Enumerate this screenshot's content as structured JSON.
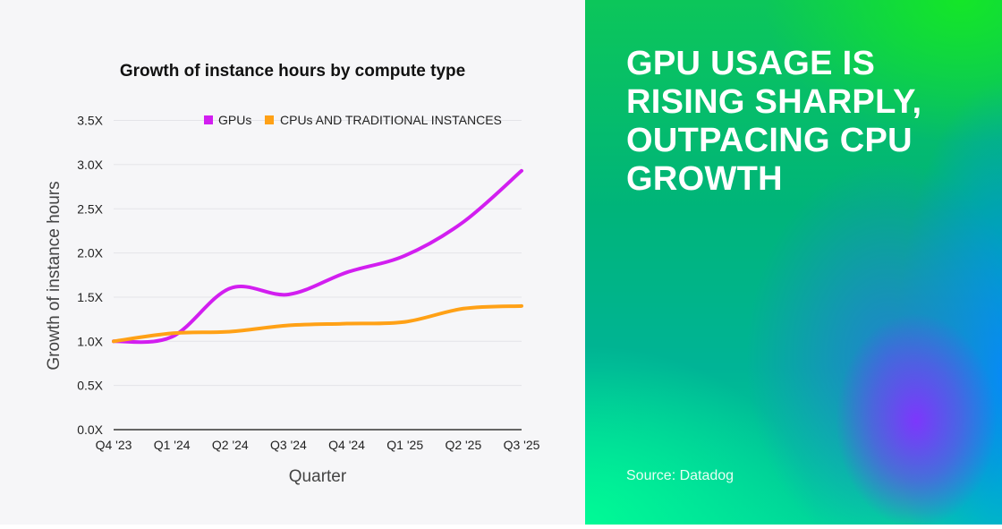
{
  "panel": {
    "headline": "GPU USAGE IS RISING SHARPLY, OUTPACING CPU GROWTH",
    "source": "Source: Datadog"
  },
  "chart_data": {
    "type": "line",
    "title": "Growth of instance hours by compute type",
    "xlabel": "Quarter",
    "ylabel": "Growth of instance hours",
    "categories": [
      "Q4 '23",
      "Q1 '24",
      "Q2 '24",
      "Q3 '24",
      "Q4 '24",
      "Q1 '25",
      "Q2 '25",
      "Q3 '25"
    ],
    "yticks": [
      "0.0X",
      "0.5X",
      "1.0X",
      "1.5X",
      "2.0X",
      "2.5X",
      "3.0X",
      "3.5X"
    ],
    "ylim": [
      0,
      3.5
    ],
    "grid": true,
    "legend_position": "top-right",
    "series": [
      {
        "name": "GPUs",
        "color": "#d21ef0",
        "values": [
          1.0,
          1.05,
          1.6,
          1.53,
          1.78,
          1.97,
          2.35,
          2.93
        ]
      },
      {
        "name": "CPUs AND TRADITIONAL INSTANCES",
        "color": "#ffa116",
        "values": [
          1.0,
          1.09,
          1.11,
          1.18,
          1.2,
          1.22,
          1.37,
          1.4
        ]
      }
    ]
  }
}
